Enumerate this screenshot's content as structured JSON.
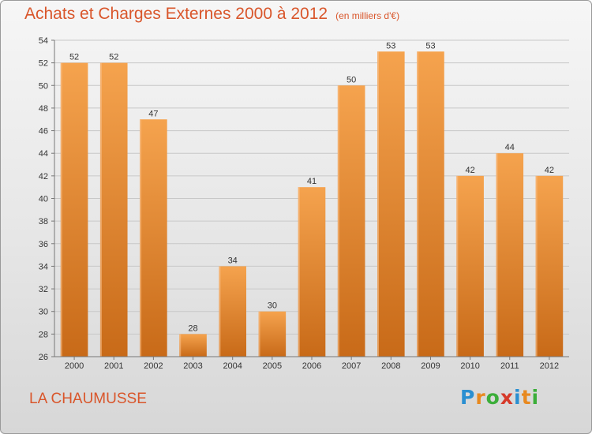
{
  "header": {
    "title": "Achats et Charges Externes 2000 à 2012",
    "unit": "(en milliers d'€)"
  },
  "commune": "LA CHAUMUSSE",
  "logo": {
    "letters": [
      "P",
      "r",
      "o",
      "x",
      "i",
      "t",
      "i"
    ],
    "colors": [
      "#2a8fd1",
      "#e8891f",
      "#3cae3a",
      "#d63a2a",
      "#2a8fd1",
      "#e8891f",
      "#3cae3a"
    ]
  },
  "chart_data": {
    "type": "bar",
    "title": "Achats et Charges Externes 2000 à 2012",
    "categories": [
      "2000",
      "2001",
      "2002",
      "2003",
      "2004",
      "2005",
      "2006",
      "2007",
      "2008",
      "2009",
      "2010",
      "2011",
      "2012"
    ],
    "values": [
      52,
      52,
      47,
      28,
      34,
      30,
      41,
      50,
      53,
      53,
      42,
      44,
      42
    ],
    "data_labels": [
      "52",
      "52",
      "47",
      "28",
      "34",
      "30",
      "41",
      "50",
      "53",
      "53",
      "42",
      "44",
      "42"
    ],
    "ylim": [
      26,
      54
    ],
    "yticks": [
      26,
      28,
      30,
      32,
      34,
      36,
      38,
      40,
      42,
      44,
      46,
      48,
      50,
      52,
      54
    ],
    "ytick_labels": [
      "26",
      "28",
      "30",
      "32",
      "34",
      "36",
      "38",
      "40",
      "42",
      "44",
      "46",
      "48",
      "50",
      "52",
      "54"
    ],
    "grid": true,
    "bar_color": "#f0903a",
    "bar_color_dark": "#c86a18",
    "xlabel": "",
    "ylabel": ""
  }
}
